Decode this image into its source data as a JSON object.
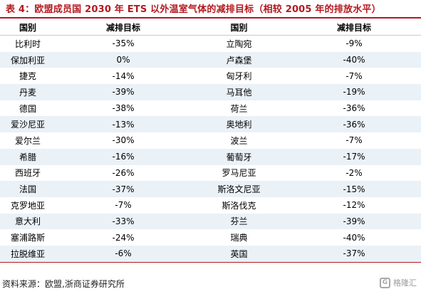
{
  "title": "表 4：欧盟成员国 2030 年 ETS 以外温室气体的减排目标（相较 2005 年的排放水平）",
  "headers": [
    "国别",
    "减排目标",
    "国别",
    "减排目标"
  ],
  "rows": [
    [
      "比利时",
      "-35%",
      "立陶宛",
      "-9%"
    ],
    [
      "保加利亚",
      "0%",
      "卢森堡",
      "-40%"
    ],
    [
      "捷克",
      "-14%",
      "匈牙利",
      "-7%"
    ],
    [
      "丹麦",
      "-39%",
      "马耳他",
      "-19%"
    ],
    [
      "德国",
      "-38%",
      "荷兰",
      "-36%"
    ],
    [
      "爱沙尼亚",
      "-13%",
      "奥地利",
      "-36%"
    ],
    [
      "爱尔兰",
      "-30%",
      "波兰",
      "-7%"
    ],
    [
      "希腊",
      "-16%",
      "葡萄牙",
      "-17%"
    ],
    [
      "西班牙",
      "-26%",
      "罗马尼亚",
      "-2%"
    ],
    [
      "法国",
      "-37%",
      "斯洛文尼亚",
      "-15%"
    ],
    [
      "克罗地亚",
      "-7%",
      "斯洛伐克",
      "-12%"
    ],
    [
      "意大利",
      "-33%",
      "芬兰",
      "-39%"
    ],
    [
      "塞浦路斯",
      "-24%",
      "瑞典",
      "-40%"
    ],
    [
      "拉脱维亚",
      "-6%",
      "英国",
      "-37%"
    ]
  ],
  "source": "资料来源：欧盟,浙商证券研究所",
  "watermark": {
    "logo_char": "G",
    "text": "格隆汇"
  },
  "colors": {
    "accent": "#b3191f",
    "row_shade": "#eaf1f7"
  }
}
